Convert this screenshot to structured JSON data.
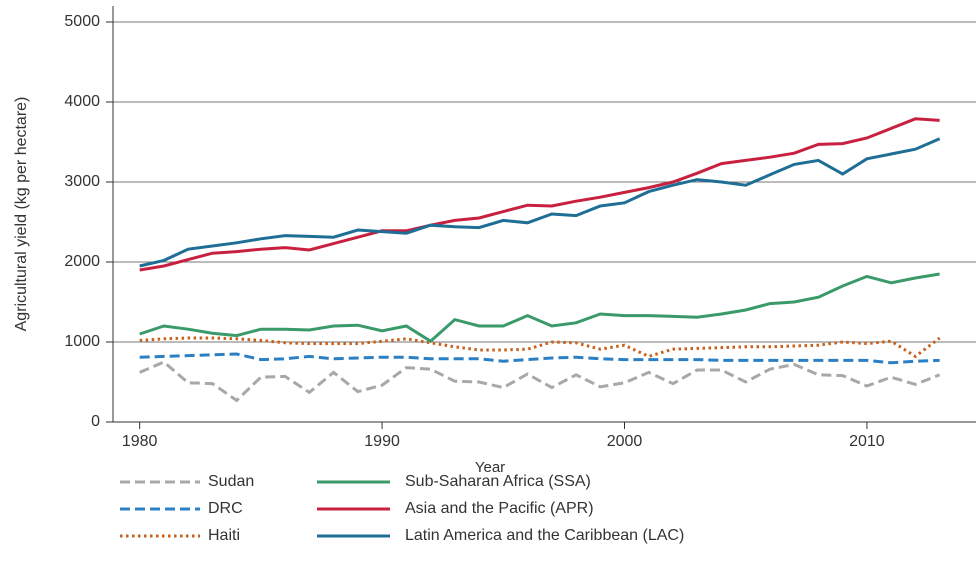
{
  "chart_data": {
    "type": "line",
    "x_label": "Year",
    "y_label": "Agricultural yield (kg per hectare)",
    "x": [
      1980,
      1981,
      1982,
      1983,
      1984,
      1985,
      1986,
      1987,
      1988,
      1989,
      1990,
      1991,
      1992,
      1993,
      1994,
      1995,
      1996,
      1997,
      1998,
      1999,
      2000,
      2001,
      2002,
      2003,
      2004,
      2005,
      2006,
      2007,
      2008,
      2009,
      2010,
      2011,
      2012,
      2013
    ],
    "xlim": [
      1978.9,
      2014.5
    ],
    "xticks": [
      1980,
      1990,
      2000,
      2010
    ],
    "ylim": [
      0,
      5200
    ],
    "yticks": [
      0,
      1000,
      2000,
      3000,
      4000,
      5000
    ],
    "grid": true,
    "series": [
      {
        "name": "Sudan",
        "color": "#a8a8a8",
        "style": "dashed",
        "values": [
          620,
          750,
          490,
          480,
          270,
          560,
          570,
          370,
          620,
          380,
          460,
          680,
          660,
          510,
          500,
          430,
          600,
          430,
          590,
          440,
          490,
          620,
          480,
          650,
          650,
          500,
          660,
          720,
          590,
          580,
          450,
          560,
          470,
          590
        ]
      },
      {
        "name": "DRC",
        "color": "#2b80c5",
        "style": "dashed",
        "values": [
          810,
          820,
          830,
          840,
          850,
          780,
          790,
          820,
          790,
          800,
          810,
          810,
          790,
          790,
          790,
          760,
          780,
          800,
          810,
          790,
          780,
          780,
          780,
          780,
          770,
          770,
          770,
          770,
          770,
          770,
          770,
          740,
          760,
          770
        ]
      },
      {
        "name": "Haiti",
        "color": "#c8601a",
        "style": "dotted",
        "values": [
          1020,
          1040,
          1050,
          1050,
          1040,
          1020,
          990,
          980,
          980,
          980,
          1010,
          1040,
          990,
          940,
          900,
          900,
          910,
          1000,
          990,
          910,
          960,
          820,
          910,
          920,
          930,
          940,
          940,
          950,
          960,
          1000,
          980,
          1010,
          820,
          1050
        ]
      },
      {
        "name": "Sub-Saharan Africa (SSA)",
        "color": "#3a9a6a",
        "style": "solid",
        "values": [
          1100,
          1200,
          1160,
          1110,
          1080,
          1160,
          1160,
          1150,
          1200,
          1210,
          1140,
          1200,
          1010,
          1280,
          1200,
          1200,
          1330,
          1200,
          1240,
          1350,
          1330,
          1330,
          1320,
          1310,
          1350,
          1400,
          1480,
          1500,
          1560,
          1700,
          1820,
          1740,
          1800,
          1850
        ]
      },
      {
        "name": "Asia and the Pacific (APR)",
        "color": "#c8203f",
        "style": "solid",
        "values": [
          1900,
          1950,
          2030,
          2110,
          2130,
          2160,
          2180,
          2150,
          2230,
          2310,
          2390,
          2390,
          2460,
          2520,
          2550,
          2630,
          2710,
          2700,
          2760,
          2810,
          2870,
          2930,
          3000,
          3110,
          3230,
          3270,
          3310,
          3360,
          3470,
          3480,
          3550,
          3670,
          3790,
          3770
        ]
      },
      {
        "name": "Latin America and the Caribbean (LAC)",
        "color": "#1e6e96",
        "style": "solid",
        "values": [
          1950,
          2020,
          2160,
          2200,
          2240,
          2290,
          2330,
          2320,
          2310,
          2400,
          2380,
          2360,
          2460,
          2440,
          2430,
          2520,
          2490,
          2600,
          2580,
          2700,
          2740,
          2880,
          2960,
          3030,
          3000,
          2960,
          3090,
          3220,
          3270,
          3100,
          3290,
          3350,
          3410,
          3540
        ]
      }
    ]
  }
}
